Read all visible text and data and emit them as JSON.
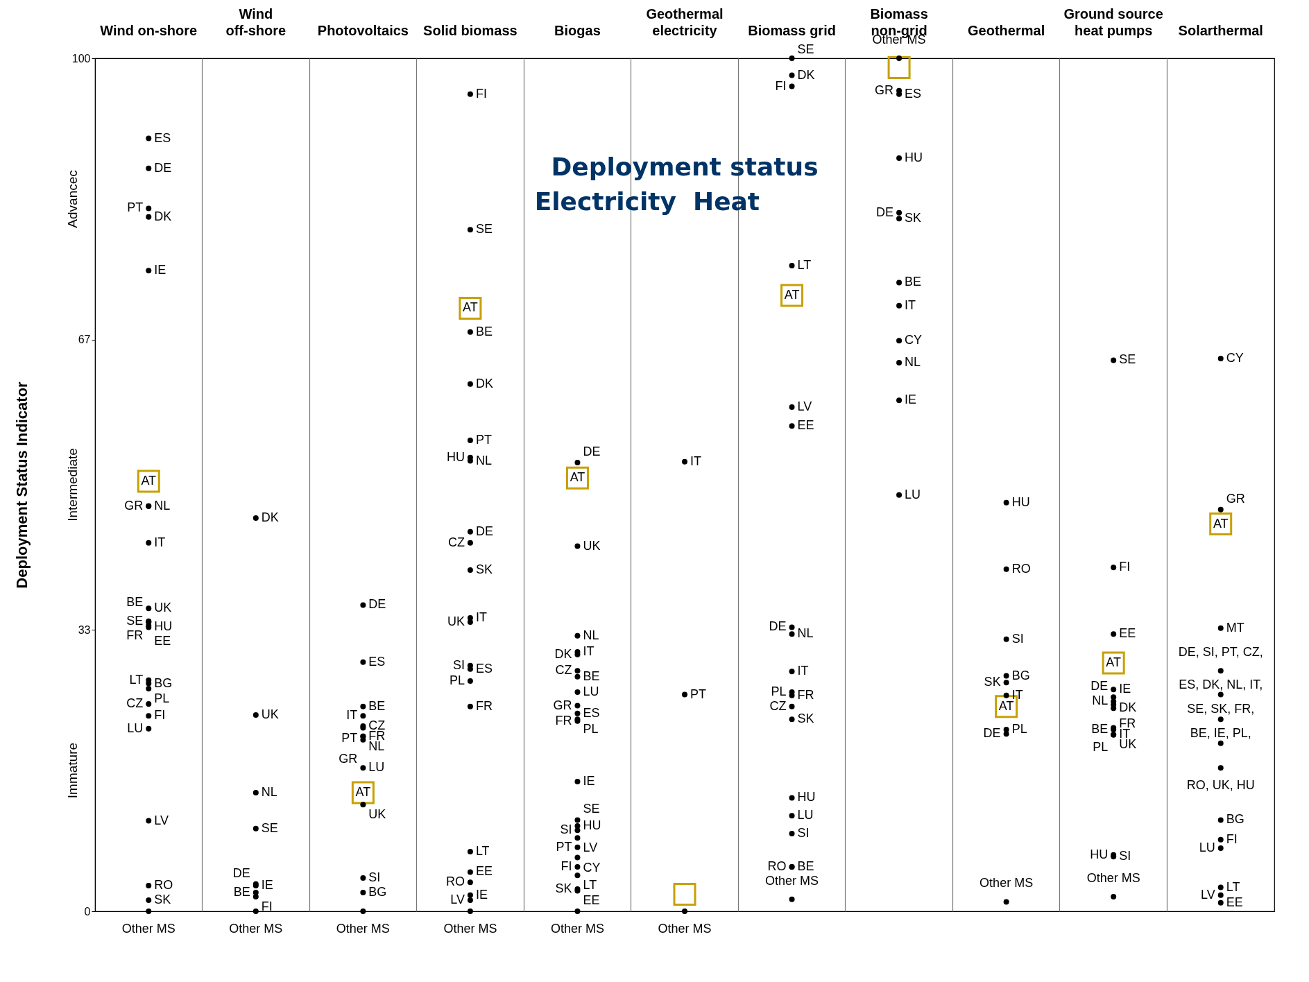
{
  "chart_data": {
    "type": "scatter",
    "title": "Deployment status",
    "ylabel": "Deployment Status Indicator",
    "categories": [
      "Wind on-shore",
      "Wind off-shore",
      "Photovoltaics",
      "Solid biomass",
      "Biogas",
      "Geothermal electricity",
      "Biomass grid",
      "Biomass non-grid",
      "Geothermal",
      "Ground source heat pumps",
      "Solarthermal"
    ],
    "ylim": [
      0,
      100
    ],
    "yticks": [
      0,
      33,
      67,
      100
    ],
    "grid": "x",
    "marker": "square",
    "annotations": [
      "Electricity",
      "Heat",
      "Advancec",
      "Intermediate",
      "Immature"
    ],
    "series": [
      {
        "color": "#c8a000",
        "x": [
          "Wind on-shore",
          "Photovoltaics",
          "Solid biomass",
          "Biogas",
          "Geothermal electricity",
          "Biomass grid",
          "Biomass non-grid",
          "Geothermal",
          "Ground source heat pumps",
          "Solarthermal"
        ],
        "values": [
          50.4,
          13.9,
          70.7,
          50.8,
          2.0,
          72.2,
          98.9,
          24.0,
          29.1,
          45.4
        ],
        "value_labels": [
          "AT",
          "AT",
          "AT",
          "AT",
          null,
          "AT",
          null,
          "AT",
          "AT",
          "AT"
        ]
      },
      {
        "color": "#000000",
        "marker": "circle",
        "x": [
          "Wind on-shore",
          "Wind on-shore",
          "Wind on-shore",
          "Wind on-shore",
          "Wind on-shore",
          "Wind on-shore",
          "Wind on-shore",
          "Wind on-shore",
          "Wind on-shore",
          "Wind on-shore",
          "Wind on-shore",
          "Wind on-shore",
          "Wind on-shore",
          "Wind on-shore",
          "Wind on-shore",
          "Wind on-shore",
          "Wind on-shore",
          "Wind on-shore",
          "Wind on-shore",
          "Wind on-shore",
          "Wind on-shore",
          "Wind on-shore",
          "Wind on-shore",
          "Wind on-shore"
        ],
        "values": [
          90.6,
          87.1,
          81.4,
          82.4,
          75.1,
          47.5,
          47.5,
          43.2,
          35.5,
          33.3,
          34.0,
          33.9,
          33.5,
          33.9,
          26.7,
          27.1,
          26.1,
          24.3,
          22.9,
          21.4,
          10.6,
          3.0,
          1.3,
          0
        ],
        "value_labels": [
          "ES",
          "DE",
          "DK",
          "PT",
          "IE",
          "NL",
          "GR",
          "IT",
          "UK",
          "HU",
          "SE",
          "BE",
          "FR",
          "EE",
          "BG",
          "LT",
          "PL",
          "CZ",
          "FI",
          "LU",
          "LV",
          "RO",
          "SK",
          "Other MS"
        ]
      },
      {
        "color": "#000000",
        "marker": "circle",
        "x": [
          "Wind off-shore",
          "Wind off-shore",
          "Wind off-shore",
          "Wind off-shore",
          "Wind off-shore",
          "Wind off-shore",
          "Wind off-shore",
          "Wind off-shore",
          "Wind off-shore"
        ],
        "values": [
          46.1,
          23.0,
          13.9,
          9.7,
          3.0,
          2.2,
          3.2,
          1.7,
          0
        ],
        "value_labels": [
          "DK",
          "UK",
          "NL",
          "SE",
          "IE",
          "BE",
          "DE",
          "FI",
          "Other MS"
        ]
      },
      {
        "color": "#000000",
        "marker": "circle",
        "x": [
          "Photovoltaics",
          "Photovoltaics",
          "Photovoltaics",
          "Photovoltaics",
          "Photovoltaics",
          "Photovoltaics",
          "Photovoltaics",
          "Photovoltaics",
          "Photovoltaics",
          "Photovoltaics",
          "Photovoltaics",
          "Photovoltaics",
          "Photovoltaics",
          "Photovoltaics"
        ],
        "values": [
          35.9,
          29.2,
          24.0,
          22.9,
          21.7,
          21.5,
          20.5,
          20.1,
          20.5,
          16.8,
          12.5,
          3.9,
          2.2,
          0
        ],
        "value_labels": [
          "DE",
          "ES",
          "BE",
          "IT",
          "CZ",
          "PT",
          "NL",
          "GR",
          "FR",
          "LU",
          "UK",
          "SI",
          "BG",
          "Other MS"
        ]
      },
      {
        "color": "#000000",
        "marker": "circle",
        "x": [
          "Solid biomass",
          "Solid biomass",
          "Solid biomass",
          "Solid biomass",
          "Solid biomass",
          "Solid biomass",
          "Solid biomass",
          "Solid biomass",
          "Solid biomass",
          "Solid biomass",
          "Solid biomass",
          "Solid biomass",
          "Solid biomass",
          "Solid biomass",
          "Solid biomass",
          "Solid biomass",
          "Solid biomass",
          "Solid biomass",
          "Solid biomass",
          "Solid biomass",
          "Solid biomass",
          "Solid biomass"
        ],
        "values": [
          95.8,
          79.9,
          67.9,
          61.8,
          55.2,
          52.8,
          53.2,
          44.5,
          43.2,
          40.0,
          34.4,
          33.9,
          28.4,
          28.8,
          27.0,
          24.0,
          7.0,
          4.6,
          3.4,
          1.9,
          1.3,
          0
        ],
        "value_labels": [
          "FI",
          "SE",
          "BE",
          "DK",
          "PT",
          "NL",
          "HU",
          "DE",
          "CZ",
          "SK",
          "IT",
          "UK",
          "ES",
          "SI",
          "PL",
          "FR",
          "LT",
          "EE",
          "RO",
          "IE",
          "LV",
          "Other MS"
        ]
      },
      {
        "color": "#000000",
        "marker": "circle",
        "x": [
          "Biogas",
          "Biogas",
          "Biogas",
          "Biogas",
          "Biogas",
          "Biogas",
          "Biogas",
          "Biogas",
          "Biogas",
          "Biogas",
          "Biogas",
          "Biogas",
          "Biogas",
          "Biogas",
          "Biogas",
          "Biogas",
          "Biogas",
          "Biogas",
          "Biogas",
          "Biogas",
          "Biogas",
          "Biogas",
          "Biogas",
          "Biogas"
        ],
        "values": [
          52.6,
          42.8,
          32.3,
          30.4,
          30.1,
          27.5,
          28.2,
          25.7,
          24.1,
          23.2,
          22.5,
          22.3,
          15.2,
          10.0,
          9.5,
          10.7,
          8.6,
          7.5,
          6.3,
          5.2,
          4.2,
          2.6,
          2.4,
          0
        ],
        "value_labels": [
          "DE",
          "UK",
          "NL",
          "IT",
          "DK",
          "BE",
          "CZ",
          "LU",
          "GR",
          "ES",
          "PL",
          "FR",
          "IE",
          "HU",
          "SI",
          "SE",
          "LV",
          "PT",
          "CY",
          "FI",
          "LT",
          "SK",
          "EE",
          "Other MS"
        ]
      },
      {
        "color": "#000000",
        "marker": "circle",
        "x": [
          "Geothermal electricity",
          "Geothermal electricity",
          "Geothermal electricity"
        ],
        "values": [
          52.7,
          25.4,
          0
        ],
        "value_labels": [
          "IT",
          "PT",
          "Other MS"
        ]
      },
      {
        "color": "#000000",
        "marker": "circle",
        "x": [
          "Biomass grid",
          "Biomass grid",
          "Biomass grid",
          "Biomass grid",
          "Biomass grid",
          "Biomass grid",
          "Biomass grid",
          "Biomass grid",
          "Biomass grid",
          "Biomass grid",
          "Biomass grid",
          "Biomass grid",
          "Biomass grid",
          "Biomass grid",
          "Biomass grid",
          "Biomass grid",
          "Biomass grid",
          "Biomass grid",
          "Biomass grid"
        ],
        "values": [
          100,
          98.0,
          96.7,
          75.7,
          59.1,
          56.9,
          32.5,
          33.3,
          28.1,
          25.3,
          24.0,
          25.7,
          22.5,
          13.3,
          11.2,
          9.1,
          5.2,
          5.2,
          1.4
        ],
        "value_labels": [
          "SE",
          "DK",
          "FI",
          "LT",
          "LV",
          "EE",
          "NL",
          "DE",
          "IT",
          "FR",
          "CZ",
          "PL",
          "SK",
          "HU",
          "LU",
          "SI",
          "BE",
          "RO",
          "Other MS"
        ]
      },
      {
        "color": "#000000",
        "marker": "circle",
        "x": [
          "Biomass non-grid",
          "Biomass non-grid",
          "Biomass non-grid",
          "Biomass non-grid",
          "Biomass non-grid",
          "Biomass non-grid",
          "Biomass non-grid",
          "Biomass non-grid",
          "Biomass non-grid",
          "Biomass non-grid",
          "Biomass non-grid",
          "Biomass non-grid"
        ],
        "values": [
          100,
          95.8,
          96.2,
          88.3,
          81.2,
          81.9,
          73.7,
          71.0,
          66.9,
          64.3,
          59.9,
          48.8
        ],
        "value_labels": [
          "Other MS",
          "ES",
          "GR",
          "HU",
          "SK",
          "DE",
          "BE",
          "IT",
          "CY",
          "NL",
          "IE",
          "LU"
        ]
      },
      {
        "color": "#000000",
        "marker": "circle",
        "x": [
          "Geothermal",
          "Geothermal",
          "Geothermal",
          "Geothermal",
          "Geothermal",
          "Geothermal",
          "Geothermal",
          "Geothermal",
          "Geothermal"
        ],
        "values": [
          47.9,
          40.1,
          31.9,
          27.6,
          26.8,
          25.3,
          21.3,
          20.8,
          1.1
        ],
        "value_labels": [
          "HU",
          "RO",
          "SI",
          "BG",
          "SK",
          "IT",
          "PL",
          "DE",
          "Other MS"
        ]
      },
      {
        "color": "#000000",
        "marker": "circle",
        "x": [
          "Ground source heat pumps",
          "Ground source heat pumps",
          "Ground source heat pumps",
          "Ground source heat pumps",
          "Ground source heat pumps",
          "Ground source heat pumps",
          "Ground source heat pumps",
          "Ground source heat pumps",
          "Ground source heat pumps",
          "Ground source heat pumps",
          "Ground source heat pumps",
          "Ground source heat pumps",
          "Ground source heat pumps",
          "Ground source heat pumps",
          "Ground source heat pumps"
        ],
        "values": [
          64.6,
          40.3,
          32.5,
          26.0,
          23.8,
          24.6,
          25.1,
          24.2,
          21.3,
          20.7,
          21.5,
          20.7,
          6.4,
          6.6,
          1.7
        ],
        "value_labels": [
          "SE",
          "FI",
          "EE",
          "IE",
          "DK",
          "NL",
          "DE",
          "FR",
          "BE",
          "UK",
          "PL",
          "IT",
          "SI",
          "HU",
          "Other MS"
        ]
      },
      {
        "color": "#000000",
        "marker": "circle",
        "x": [
          "Solarthermal",
          "Solarthermal",
          "Solarthermal",
          "Solarthermal",
          "Solarthermal",
          "Solarthermal",
          "Solarthermal",
          "Solarthermal",
          "Solarthermal",
          "Solarthermal",
          "Solarthermal",
          "Solarthermal",
          "Solarthermal",
          "Solarthermal"
        ],
        "values": [
          64.8,
          47.1,
          33.2,
          28.2,
          25.4,
          22.5,
          19.7,
          16.8,
          10.7,
          8.4,
          7.4,
          2.8,
          1.9,
          1.0
        ],
        "value_labels": [
          "CY",
          "GR",
          "MT",
          "DE, SI, PT, CZ,",
          "ES, DK, NL, IT,",
          "SE, SK, FR,",
          "BE, IE, PL,",
          "RO, UK, HU",
          "BG",
          "FI",
          "LU",
          "LT",
          "LV",
          "EE"
        ]
      }
    ]
  }
}
